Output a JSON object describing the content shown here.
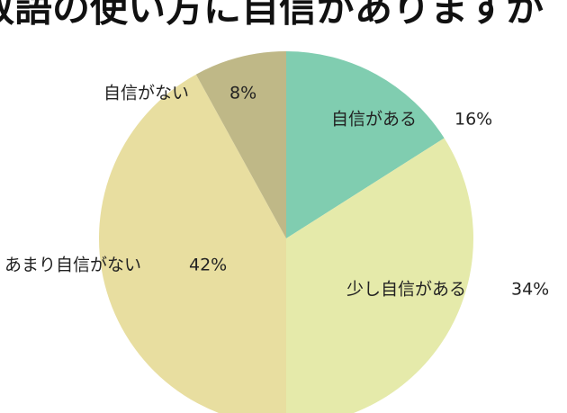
{
  "chart_data": {
    "type": "pie",
    "title": "敬語の使い方に自信がありますか",
    "categories": [
      "自信がある",
      "少し自信がある",
      "あまり自信がない",
      "自信がない"
    ],
    "values": [
      16,
      34,
      42,
      8
    ],
    "value_labels": [
      "16%",
      "34%",
      "42%",
      "8%"
    ],
    "colors": [
      "#80cdb0",
      "#e5eaaa",
      "#e8dea0",
      "#bfb887"
    ]
  }
}
